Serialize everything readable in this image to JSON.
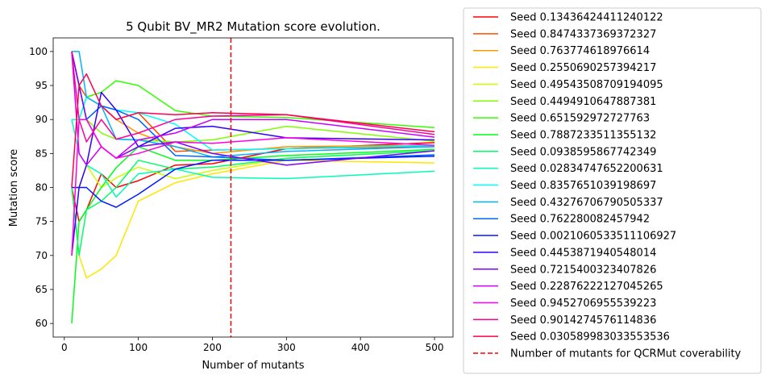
{
  "chart_data": {
    "type": "line",
    "title": "5 Qubit BV_MR2 Mutation score evolution.",
    "xlabel": "Number of mutants",
    "ylabel": "Mutation score",
    "xlim": [
      -15,
      525
    ],
    "ylim": [
      58,
      102
    ],
    "xticks": [
      0,
      100,
      200,
      300,
      400,
      500
    ],
    "yticks": [
      60,
      65,
      70,
      75,
      80,
      85,
      90,
      95,
      100
    ],
    "grid": false,
    "legend_position": "outside-right",
    "x": [
      10,
      20,
      30,
      50,
      70,
      100,
      150,
      200,
      300,
      500
    ],
    "series": [
      {
        "name": "Seed 0.13436424411240122",
        "color": "#ff0000",
        "values": [
          80,
          75,
          76.7,
          82,
          80,
          81,
          83.3,
          83.5,
          85.7,
          86.6
        ]
      },
      {
        "name": "Seed 0.8474337369372327",
        "color": "#ff4d00",
        "values": [
          100,
          95,
          93.3,
          92,
          90,
          91,
          85.3,
          85.5,
          85.7,
          86.0
        ]
      },
      {
        "name": "Seed 0.763774618976614",
        "color": "#ff9900",
        "values": [
          90,
          90,
          90,
          92,
          90,
          88,
          86,
          85,
          86,
          86.2
        ]
      },
      {
        "name": "Seed 0.2550690257394217",
        "color": "#ffe600",
        "values": [
          80,
          70,
          66.7,
          68,
          70,
          78,
          80.7,
          82,
          84,
          83.6
        ]
      },
      {
        "name": "Seed 0.49543508709194095",
        "color": "#ccff00",
        "values": [
          80,
          80,
          83.3,
          80,
          81.4,
          83,
          81.3,
          82.5,
          84.3,
          85.4
        ]
      },
      {
        "name": "Seed 0.4494910647887381",
        "color": "#80ff00",
        "values": [
          90,
          90,
          90,
          88,
          87.1,
          87,
          86.7,
          87,
          89,
          86.8
        ]
      },
      {
        "name": "Seed 0.651592972727763",
        "color": "#33ff00",
        "values": [
          90,
          90,
          93.3,
          94,
          95.7,
          95,
          91.3,
          90.5,
          90.3,
          88.8
        ]
      },
      {
        "name": "Seed 0.7887233511355132",
        "color": "#00ff1a",
        "values": [
          60,
          75,
          76.7,
          80,
          82.9,
          86,
          84,
          84,
          84.7,
          85.6
        ]
      },
      {
        "name": "Seed 0.0938595867742349",
        "color": "#00ff66",
        "values": [
          80,
          70,
          76.7,
          78,
          80,
          84,
          82.7,
          83,
          84.3,
          85.4
        ]
      },
      {
        "name": "Seed 0.02834747652200631",
        "color": "#00ffb3",
        "values": [
          90,
          85,
          83.3,
          82,
          78.6,
          82,
          82.7,
          81.5,
          81.3,
          82.4
        ]
      },
      {
        "name": "Seed 0.8357651039198697",
        "color": "#00ffff",
        "values": [
          90,
          90,
          93.3,
          92,
          91.4,
          91,
          89.3,
          85.5,
          85.7,
          86.2
        ]
      },
      {
        "name": "Seed 0.43276706790505337",
        "color": "#00b3ff",
        "values": [
          100,
          100,
          93.3,
          92,
          87.1,
          87,
          86,
          84.5,
          85.3,
          86.0
        ]
      },
      {
        "name": "Seed 0.762280082457942",
        "color": "#0066ff",
        "values": [
          100,
          95,
          90,
          92,
          91.4,
          90,
          84.7,
          84.5,
          84.0,
          84.8
        ]
      },
      {
        "name": "Seed 0.0021060533511106927",
        "color": "#001aff",
        "values": [
          80,
          80,
          80,
          78,
          77.1,
          79,
          82.7,
          84.0,
          84.0,
          84.6
        ]
      },
      {
        "name": "Seed 0.4453871940548014",
        "color": "#3300ff",
        "values": [
          70,
          80,
          83.3,
          94,
          91.4,
          86,
          88.7,
          89,
          87.3,
          87.0
        ]
      },
      {
        "name": "Seed 0.7215400323407826",
        "color": "#8000ff",
        "values": [
          100,
          95,
          90,
          86,
          84.3,
          86,
          86.7,
          85,
          83.3,
          85.4
        ]
      },
      {
        "name": "Seed 0.22876222127045265",
        "color": "#cc00ff",
        "values": [
          100,
          85,
          83.3,
          86,
          84.3,
          87,
          88,
          90,
          90,
          87.4
        ]
      },
      {
        "name": "Seed 0.9452706955539223",
        "color": "#ff00e6",
        "values": [
          70,
          90,
          90,
          86,
          84.3,
          85,
          86.7,
          86.5,
          87.3,
          86.2
        ]
      },
      {
        "name": "Seed 0.9014274576114836",
        "color": "#ff0099",
        "values": [
          100,
          90,
          86.7,
          90,
          87.1,
          88,
          90,
          90.5,
          90.7,
          87.8
        ]
      },
      {
        "name": "Seed 0.030589983033553536",
        "color": "#ff004d",
        "values": [
          80,
          95,
          96.7,
          92,
          90,
          91,
          90.7,
          91,
          90.7,
          88.2
        ]
      }
    ],
    "vline": {
      "x": 225,
      "label": "Number of mutants for QCRMut coverability",
      "color": "#ff0000",
      "style": "dashed"
    }
  }
}
